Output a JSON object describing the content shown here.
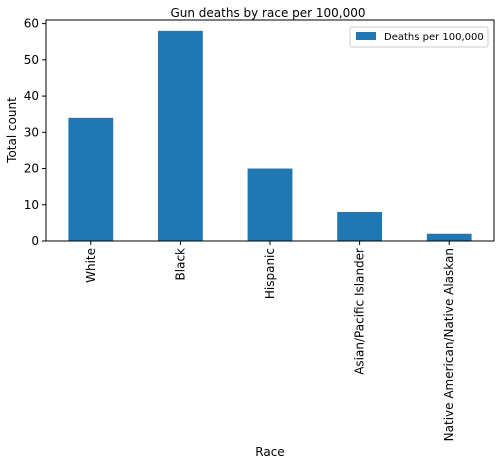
{
  "chart_data": {
    "type": "bar",
    "title": "Gun deaths by race per 100,000",
    "xlabel": "Race",
    "ylabel": "Total count",
    "categories": [
      "White",
      "Black",
      "Hispanic",
      "Asian/Pacific Islander",
      "Native American/Native Alaskan"
    ],
    "series": [
      {
        "name": "Deaths per 100,000",
        "values": [
          34,
          58,
          20,
          8,
          2
        ],
        "color": "#1f77b4"
      }
    ],
    "ylim": [
      0,
      61
    ],
    "yticks": [
      0,
      10,
      20,
      30,
      40,
      50,
      60
    ],
    "grid": false,
    "legend_position": "top-right"
  }
}
